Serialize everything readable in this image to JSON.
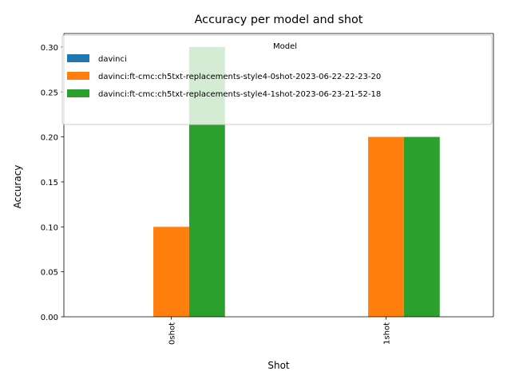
{
  "chart_data": {
    "type": "bar",
    "title": "Accuracy per model and shot",
    "xlabel": "Shot",
    "ylabel": "Accuracy",
    "categories": [
      "0shot",
      "1shot"
    ],
    "ylim": [
      0,
      0.315
    ],
    "yticks": [
      0.0,
      0.05,
      0.1,
      0.15,
      0.2,
      0.25,
      0.3
    ],
    "ytick_labels": [
      "0.00",
      "0.05",
      "0.10",
      "0.15",
      "0.20",
      "0.25",
      "0.30"
    ],
    "grid": false,
    "x_tick_rotation": "vertical",
    "legend": {
      "title": "Model",
      "placement": "upper-center"
    },
    "series": [
      {
        "name": "davinci",
        "values": [
          0.0,
          0.0
        ],
        "color": "#1f77b4"
      },
      {
        "name": "davinci:ft-cmc:ch5txt-replacements-style4-0shot-2023-06-22-22-23-20",
        "values": [
          0.1,
          0.2
        ],
        "color": "#ff7f0e"
      },
      {
        "name": "davinci:ft-cmc:ch5txt-replacements-style4-1shot-2023-06-23-21-52-18",
        "values": [
          0.3,
          0.2
        ],
        "color": "#2ca02c"
      }
    ]
  }
}
